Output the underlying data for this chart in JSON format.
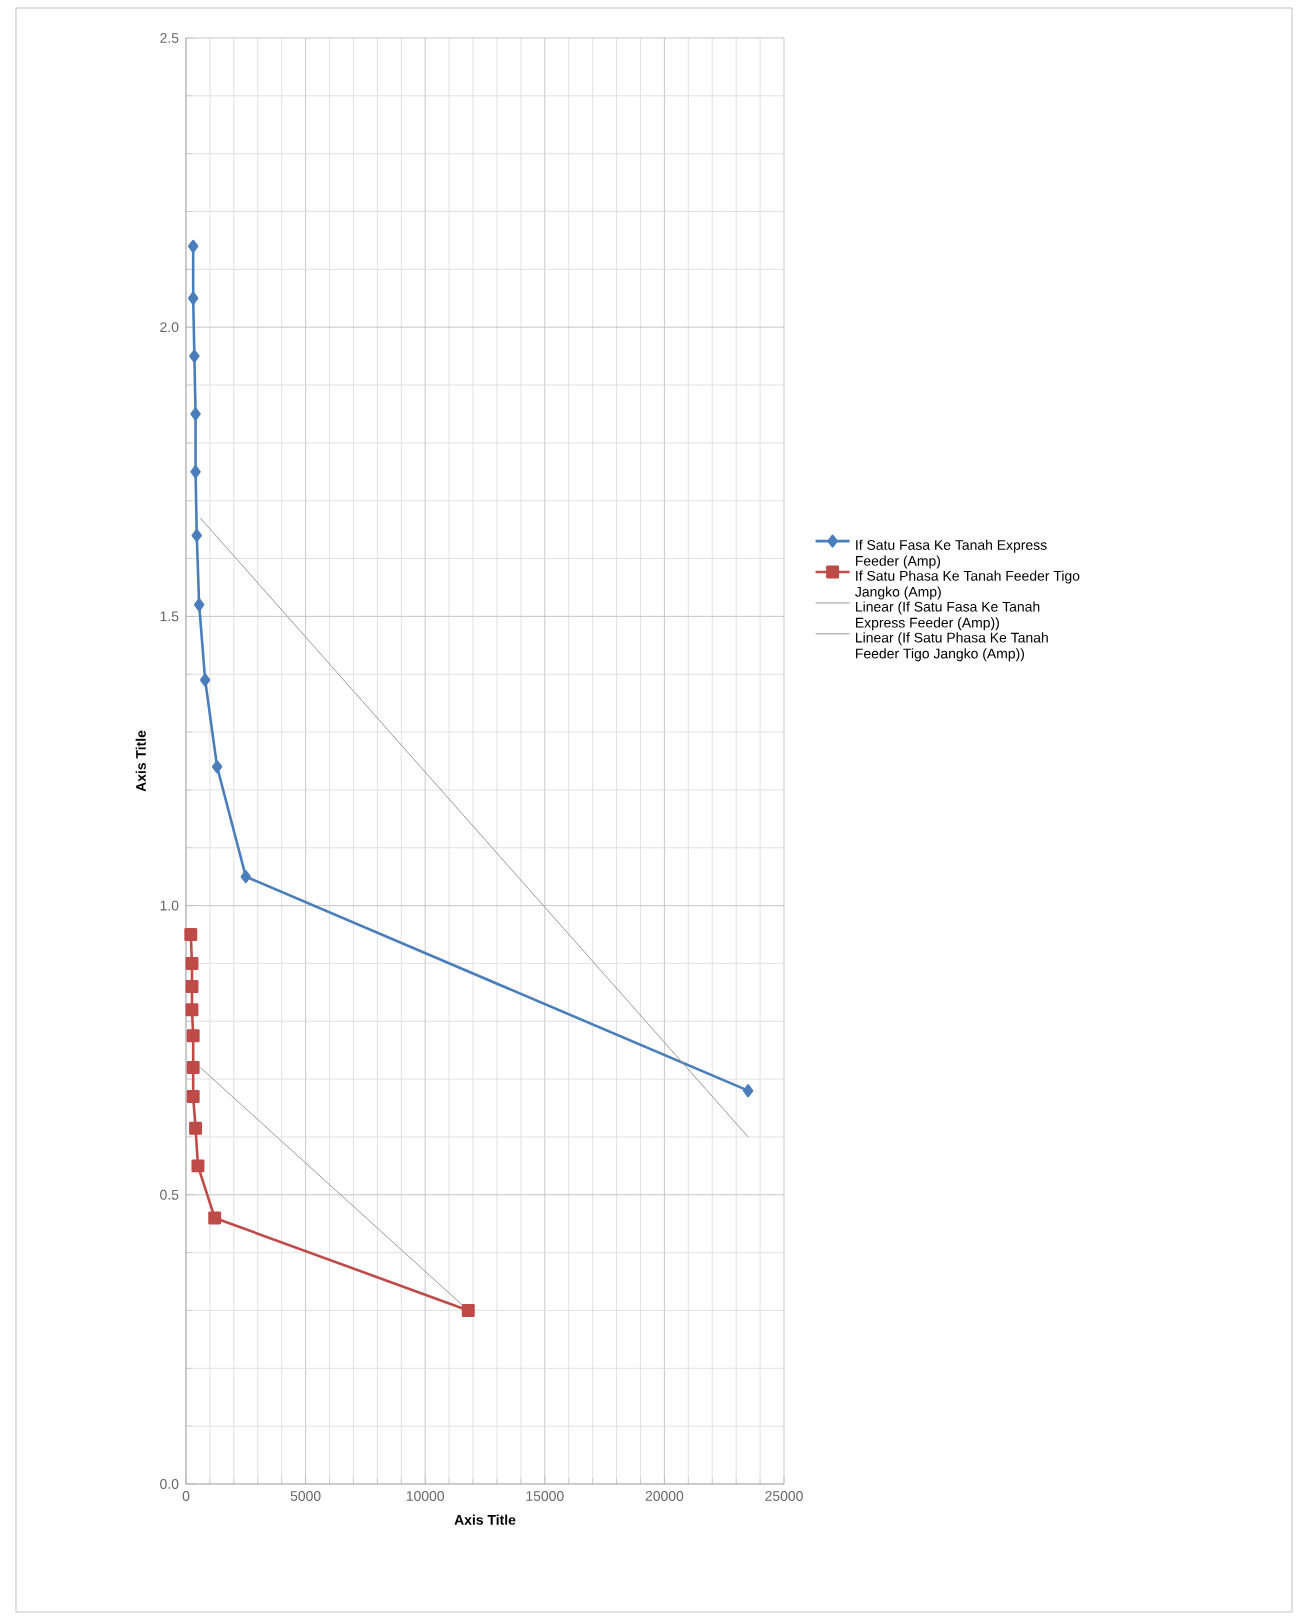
{
  "chart_data": {
    "type": "line",
    "xlabel": "Axis Title",
    "ylabel": "Axis Title",
    "xlim": [
      0,
      25000
    ],
    "ylim": [
      0,
      2.5
    ],
    "xticks": [
      0,
      5000,
      10000,
      15000,
      20000,
      25000
    ],
    "yticks": [
      {
        "value": 0,
        "label": "0.0"
      },
      0.5,
      {
        "value": 1,
        "label": "1.0"
      },
      1.5,
      {
        "value": 2,
        "label": "2.0"
      },
      2.5
    ],
    "grid": true,
    "legend": "right",
    "series": [
      {
        "name": "If Satu Fasa Ke Tanah Express Feeder (Amp)",
        "color": "#4a7ebb",
        "marker": "diamond",
        "x": [
          300,
          300,
          350,
          400,
          400,
          450,
          550,
          800,
          1300,
          2500,
          23500
        ],
        "values": [
          2.14,
          2.05,
          1.95,
          1.85,
          1.75,
          1.64,
          1.52,
          1.39,
          1.24,
          1.05,
          0.68
        ]
      },
      {
        "name": "If Satu Phasa Ke Tanah Feeder Tigo Jangko (Amp)",
        "color": "#be4b48",
        "marker": "square",
        "x": [
          200,
          250,
          250,
          250,
          300,
          300,
          300,
          400,
          500,
          1200,
          11800
        ],
        "values": [
          0.95,
          0.9,
          0.86,
          0.82,
          0.775,
          0.72,
          0.67,
          0.615,
          0.55,
          0.46,
          0.3
        ]
      },
      {
        "name": "Linear (If Satu Fasa Ke Tanah Express Feeder (Amp))",
        "color": "#9a9a9a",
        "marker": "none",
        "x": [
          600,
          23500
        ],
        "values": [
          1.67,
          0.6
        ]
      },
      {
        "name": "Linear (If Satu Phasa Ke Tanah Feeder Tigo Jangko (Amp))",
        "color": "#9a9a9a",
        "marker": "none",
        "x": [
          600,
          11800
        ],
        "values": [
          0.72,
          0.3
        ]
      }
    ]
  }
}
